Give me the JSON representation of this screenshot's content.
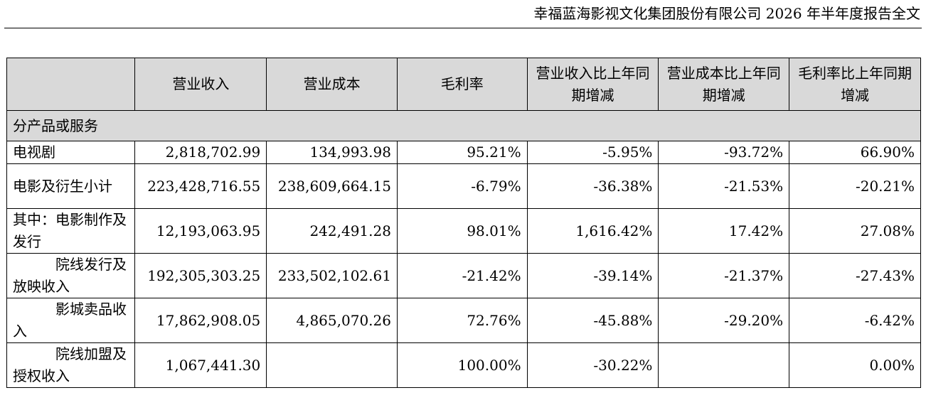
{
  "header": {
    "title": "幸福蓝海影视文化集团股份有限公司 2026 年半年度报告全文"
  },
  "table": {
    "columns": [
      "",
      "营业收入",
      "营业成本",
      "毛利率",
      "营业收入比上年同期增减",
      "营业成本比上年同期增减",
      "毛利率比上年同期增减"
    ],
    "section_label": "分产品或服务",
    "rows": [
      {
        "label": "电视剧",
        "revenue": "2,818,702.99",
        "cost": "134,993.98",
        "margin": "95.21%",
        "revenue_change": "-5.95%",
        "cost_change": "-93.72%",
        "margin_change": "66.90%"
      },
      {
        "label": "电影及衍生小计",
        "revenue": "223,428,716.55",
        "cost": "238,609,664.15",
        "margin": "-6.79%",
        "revenue_change": "-36.38%",
        "cost_change": "-21.53%",
        "margin_change": "-20.21%"
      },
      {
        "label": "其中：电影制作及发行",
        "revenue": "12,193,063.95",
        "cost": "242,491.28",
        "margin": "98.01%",
        "revenue_change": "1,616.42%",
        "cost_change": "17.42%",
        "margin_change": "27.08%"
      },
      {
        "label": "院线发行及放映收入",
        "revenue": "192,305,303.25",
        "cost": "233,502,102.61",
        "margin": "-21.42%",
        "revenue_change": "-39.14%",
        "cost_change": "-21.37%",
        "margin_change": "-27.43%"
      },
      {
        "label": "影城卖品收入",
        "revenue": "17,862,908.05",
        "cost": "4,865,070.26",
        "margin": "72.76%",
        "revenue_change": "-45.88%",
        "cost_change": "-29.20%",
        "margin_change": "-6.42%"
      },
      {
        "label": "院线加盟及授权收入",
        "revenue": "1,067,441.30",
        "cost": "",
        "margin": "100.00%",
        "revenue_change": "-30.22%",
        "cost_change": "",
        "margin_change": "0.00%"
      }
    ]
  }
}
